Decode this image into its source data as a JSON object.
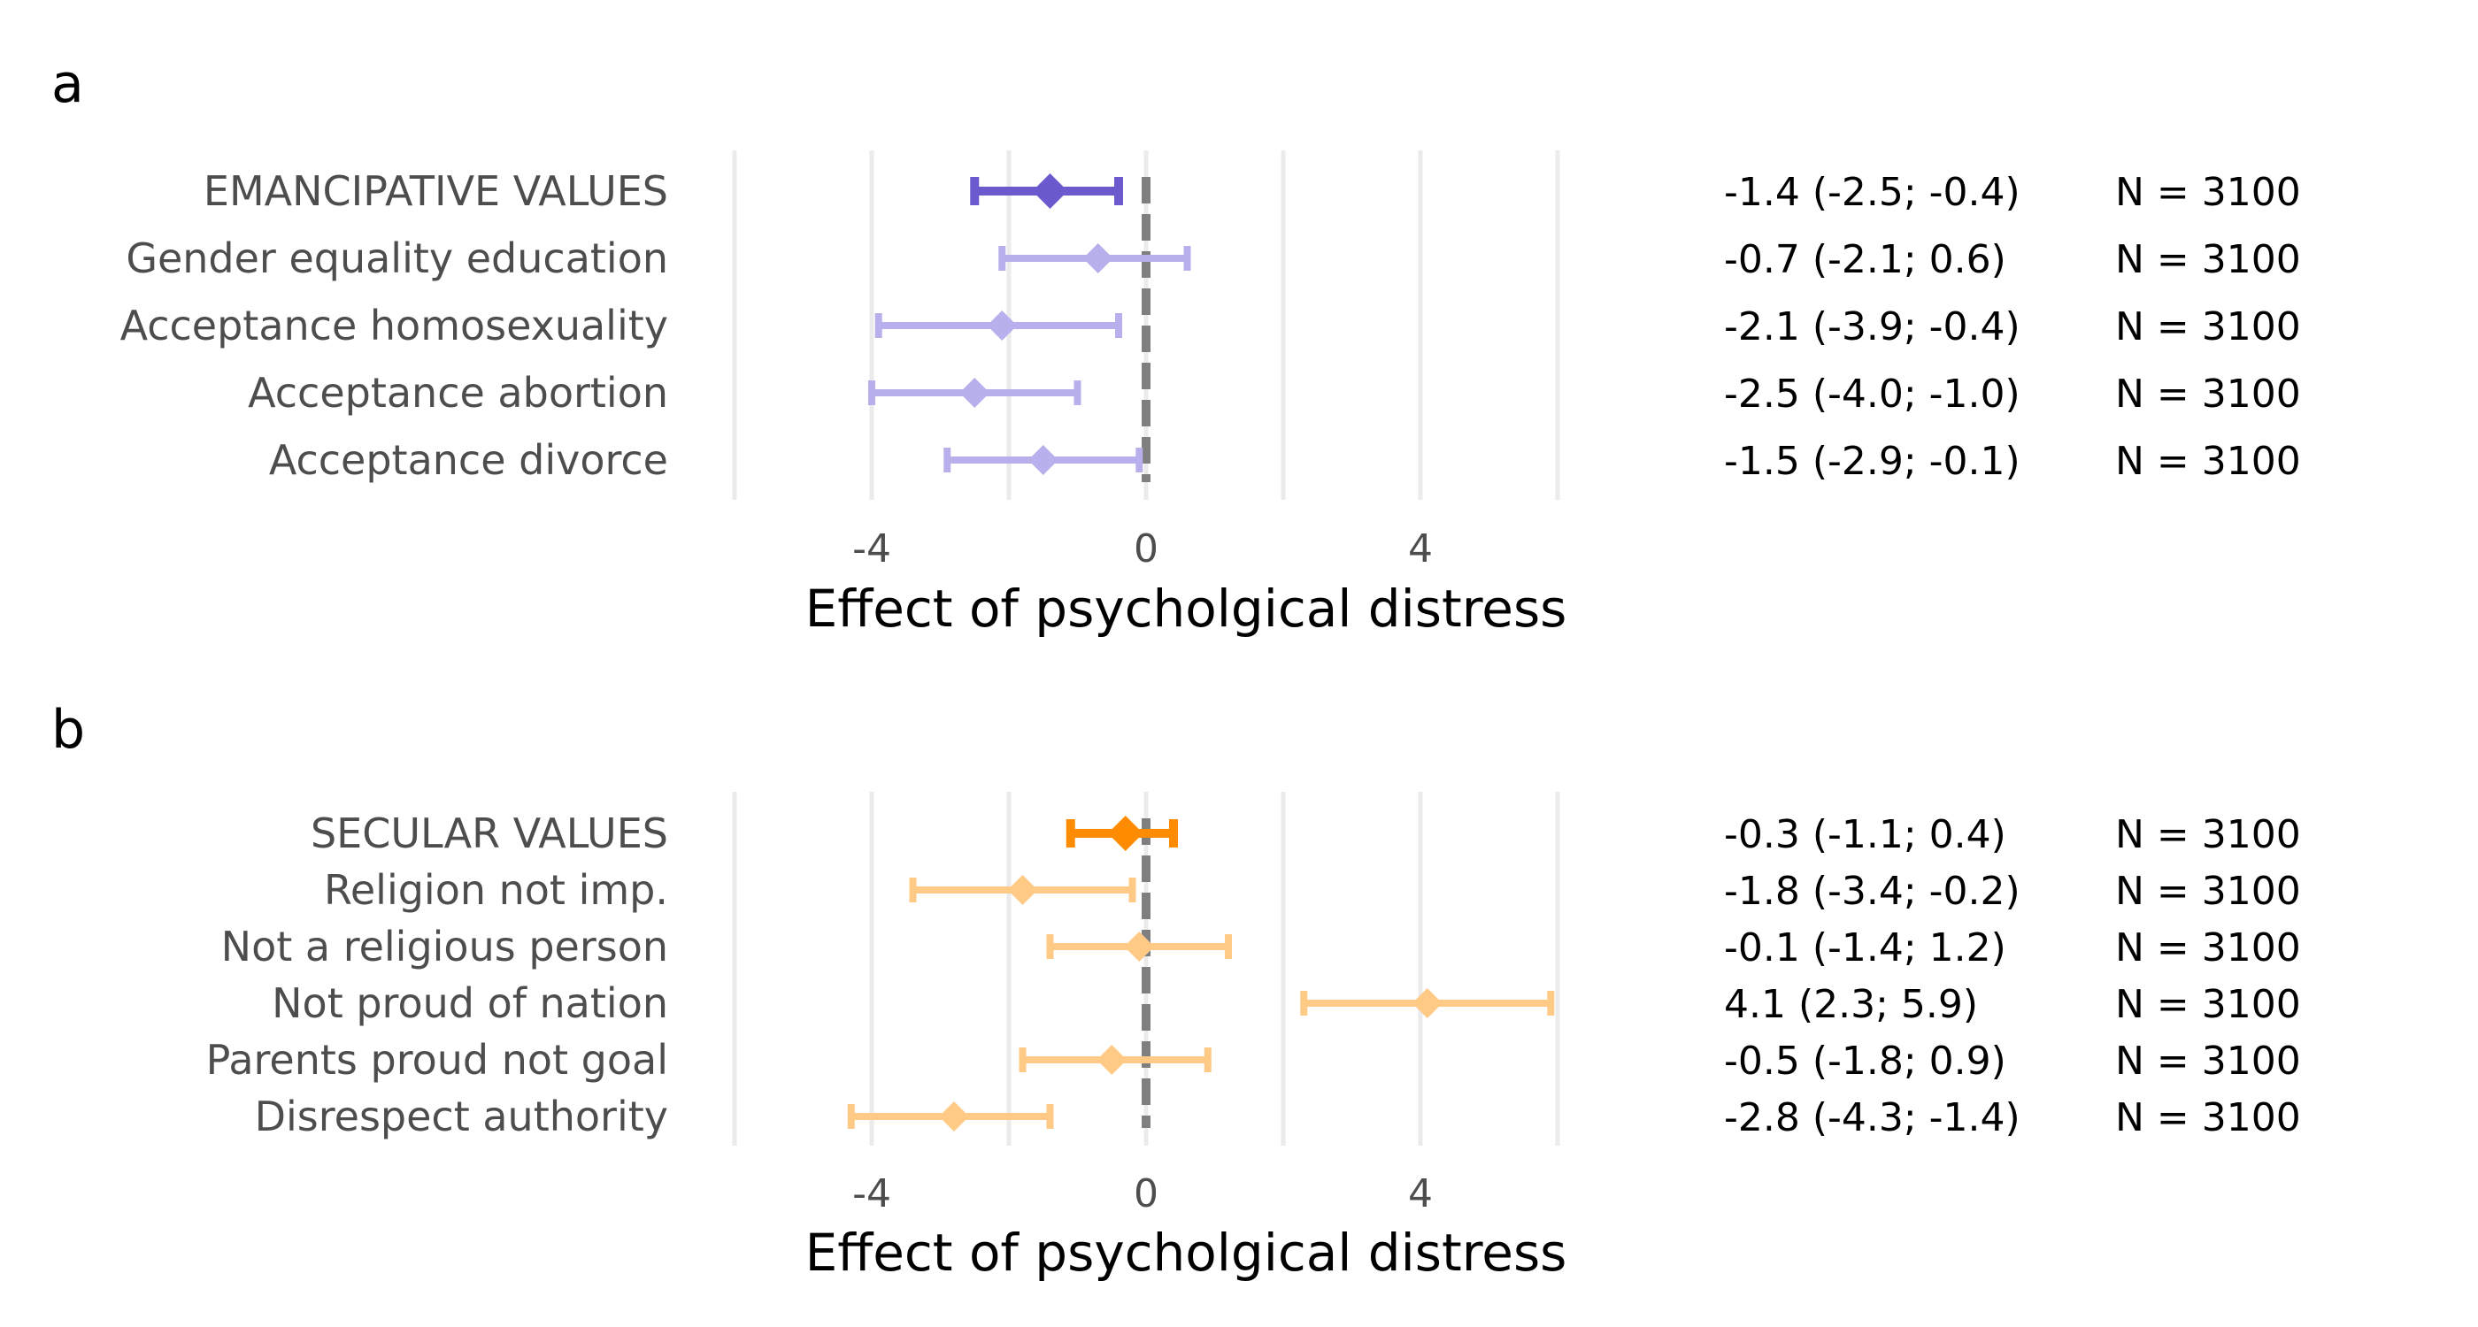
{
  "chart_data": [
    {
      "panel": "a",
      "type": "forest",
      "xlabel": "Effect of psycholgical distress",
      "xlim": [
        -6,
        6
      ],
      "xticks": [
        -4,
        0,
        4
      ],
      "grid": true,
      "reference_line": 0,
      "color_summary": "#6a5acd",
      "color_item": "#b7b0ec",
      "rows": [
        {
          "label": "EMANCIPATIVE VALUES",
          "est": -1.4,
          "lo": -2.5,
          "hi": -0.4,
          "ci_text": "-1.4 (-2.5; -0.4)",
          "n_text": "N = 3100",
          "summary": true
        },
        {
          "label": "Gender equality education",
          "est": -0.7,
          "lo": -2.1,
          "hi": 0.6,
          "ci_text": "-0.7 (-2.1; 0.6)",
          "n_text": "N = 3100",
          "summary": false
        },
        {
          "label": "Acceptance homosexuality",
          "est": -2.1,
          "lo": -3.9,
          "hi": -0.4,
          "ci_text": "-2.1 (-3.9; -0.4)",
          "n_text": "N = 3100",
          "summary": false
        },
        {
          "label": "Acceptance abortion",
          "est": -2.5,
          "lo": -4.0,
          "hi": -1.0,
          "ci_text": "-2.5 (-4.0; -1.0)",
          "n_text": "N = 3100",
          "summary": false
        },
        {
          "label": "Acceptance divorce",
          "est": -1.5,
          "lo": -2.9,
          "hi": -0.1,
          "ci_text": "-1.5 (-2.9; -0.1)",
          "n_text": "N = 3100",
          "summary": false
        }
      ]
    },
    {
      "panel": "b",
      "type": "forest",
      "xlabel": "Effect of psycholgical distress",
      "xlim": [
        -6,
        6
      ],
      "xticks": [
        -4,
        0,
        4
      ],
      "grid": true,
      "reference_line": 0,
      "color_summary": "#ff8c00",
      "color_item": "#ffca85",
      "rows": [
        {
          "label": "SECULAR VALUES",
          "est": -0.3,
          "lo": -1.1,
          "hi": 0.4,
          "ci_text": "-0.3 (-1.1; 0.4)",
          "n_text": "N = 3100",
          "summary": true
        },
        {
          "label": "Religion not imp.",
          "est": -1.8,
          "lo": -3.4,
          "hi": -0.2,
          "ci_text": "-1.8 (-3.4; -0.2)",
          "n_text": "N = 3100",
          "summary": false
        },
        {
          "label": "Not a religious person",
          "est": -0.1,
          "lo": -1.4,
          "hi": 1.2,
          "ci_text": "-0.1 (-1.4; 1.2)",
          "n_text": "N = 3100",
          "summary": false
        },
        {
          "label": "Not proud of nation",
          "est": 4.1,
          "lo": 2.3,
          "hi": 5.9,
          "ci_text": "4.1 (2.3; 5.9)",
          "n_text": "N = 3100",
          "summary": false
        },
        {
          "label": "Parents proud not goal",
          "est": -0.5,
          "lo": -1.8,
          "hi": 0.9,
          "ci_text": "-0.5 (-1.8; 0.9)",
          "n_text": "N = 3100",
          "summary": false
        },
        {
          "label": "Disrespect authority",
          "est": -2.8,
          "lo": -4.3,
          "hi": -1.4,
          "ci_text": "-2.8 (-4.3; -1.4)",
          "n_text": "N = 3100",
          "summary": false
        }
      ]
    }
  ]
}
